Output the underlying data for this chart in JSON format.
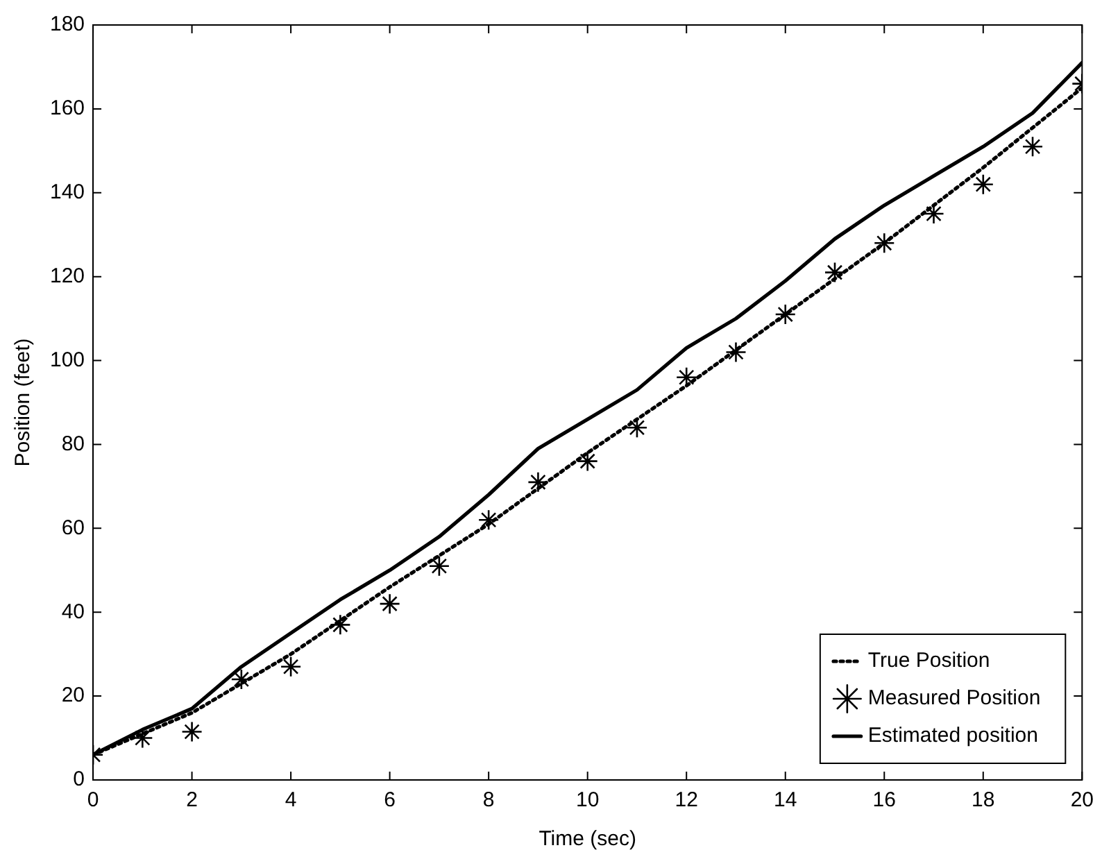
{
  "chart_data": {
    "type": "line",
    "xlabel": "Time (sec)",
    "ylabel": "Position (feet)",
    "xlim": [
      0,
      20
    ],
    "xticks": [
      0,
      2,
      4,
      6,
      8,
      10,
      12,
      14,
      16,
      18,
      20
    ],
    "ylim": [
      0,
      180
    ],
    "yticks": [
      0,
      20,
      40,
      60,
      80,
      100,
      120,
      140,
      160,
      180
    ],
    "grid": false,
    "legend": "bottom right",
    "series": [
      {
        "name": "True Position",
        "color": "#000000",
        "line_style": "dotted",
        "marker": "none",
        "x": [
          0,
          2,
          4,
          6,
          8,
          10,
          12,
          14,
          16,
          18,
          20
        ],
        "values": [
          6,
          16,
          30,
          46,
          61,
          78,
          94,
          111,
          128,
          146,
          165
        ]
      },
      {
        "name": "Measured Position",
        "type": "scatter",
        "color": "#000000",
        "marker": "cross",
        "x": [
          0,
          1,
          2,
          3,
          4,
          5,
          6,
          7,
          8,
          9,
          10,
          11,
          12,
          13,
          14,
          15,
          16,
          17,
          18,
          19,
          20
        ],
        "values": [
          6,
          10,
          11.5,
          24,
          27,
          37,
          42,
          51,
          62,
          71,
          76,
          84,
          96,
          102,
          111,
          121,
          128,
          135,
          142,
          151,
          166
        ]
      },
      {
        "name": "Estimated position",
        "color": "#000000",
        "line_style": "solid",
        "marker": "none",
        "x": [
          0,
          1,
          2,
          3,
          4,
          5,
          6,
          7,
          8,
          9,
          10,
          11,
          12,
          13,
          14,
          15,
          16,
          17,
          18,
          19,
          20
        ],
        "values": [
          6,
          12,
          17,
          27,
          35,
          43,
          50,
          58,
          68,
          79,
          86,
          93,
          103,
          110,
          119,
          129,
          137,
          144,
          151,
          159,
          171
        ]
      }
    ]
  }
}
